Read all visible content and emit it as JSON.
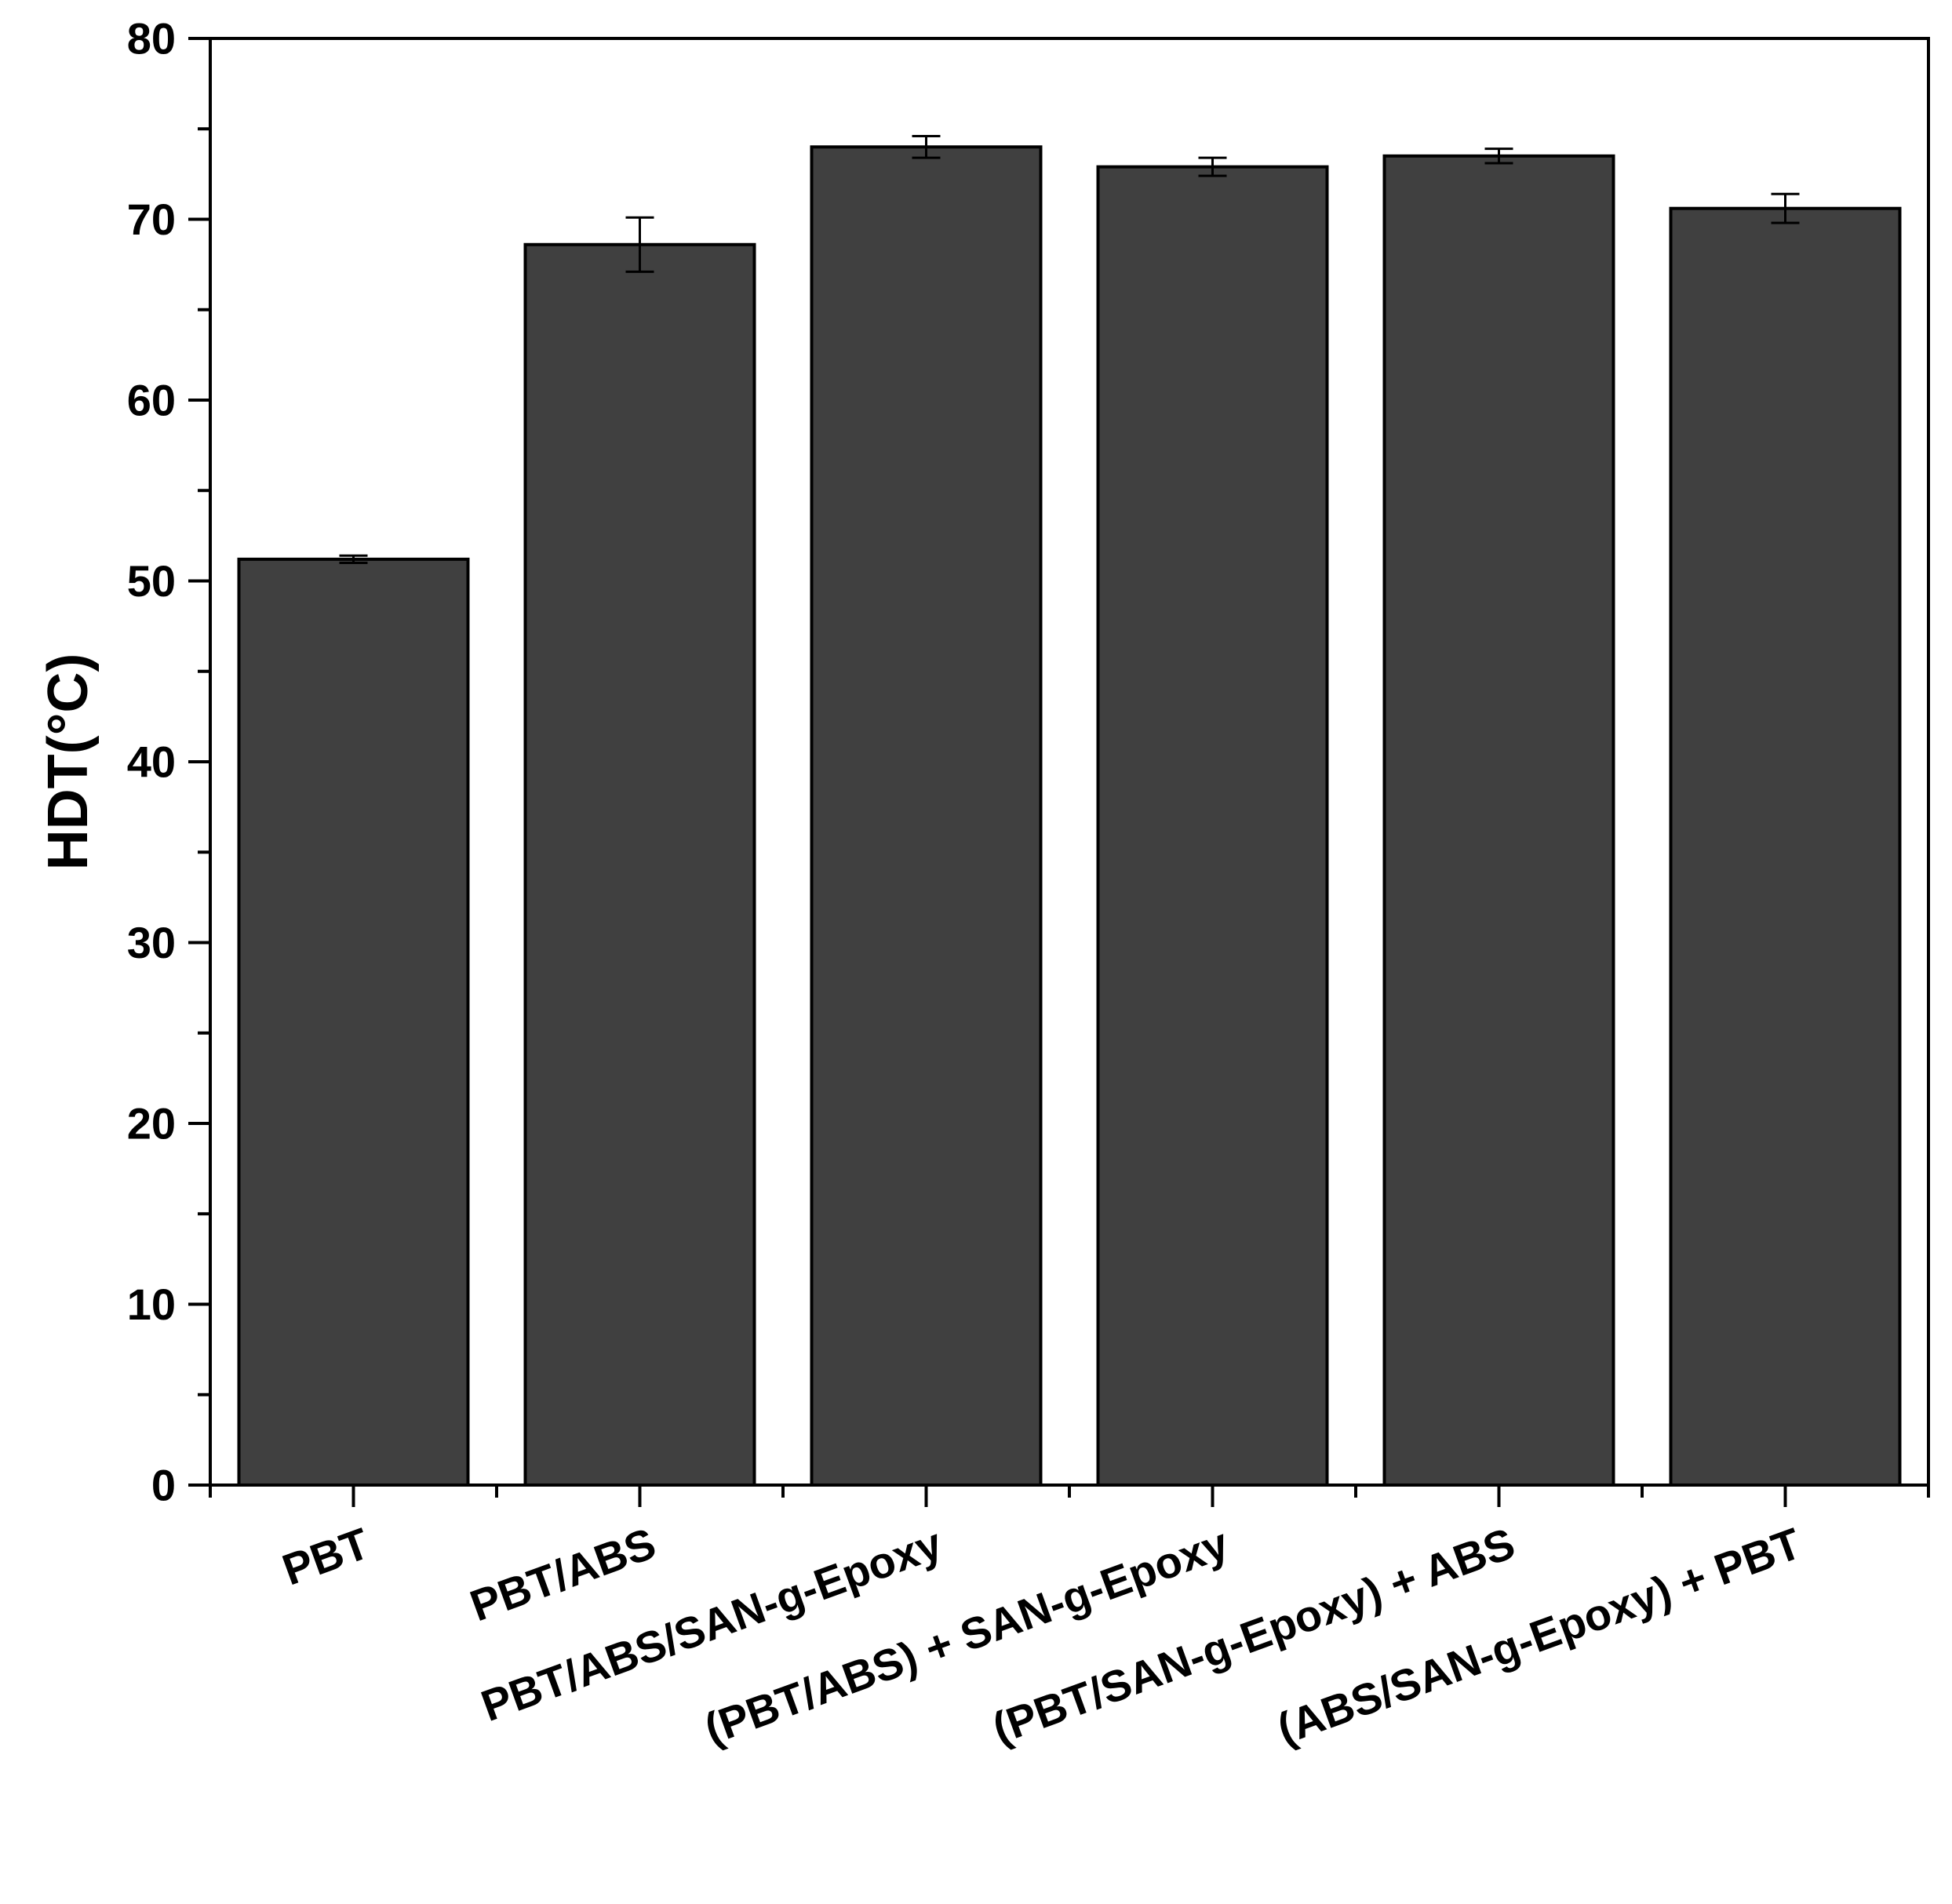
{
  "chart_data": {
    "type": "bar",
    "title": "",
    "xlabel": "",
    "ylabel": "HDT(°C)",
    "ylim": [
      0,
      80
    ],
    "yticks": [
      0,
      10,
      20,
      30,
      40,
      50,
      60,
      70,
      80
    ],
    "ytick_labels": [
      "0",
      "10",
      "20",
      "30",
      "40",
      "50",
      "60",
      "70",
      "80"
    ],
    "categories": [
      "PBT",
      "PBT/ABS",
      "PBT/ABS/SAN-g-Epoxy",
      "(PBT/ABS) + SAN-g-Epoxy",
      "(PBT/SAN-g-Epoxy) + ABS",
      "(ABS/SAN-g-Epoxy) + PBT"
    ],
    "values": [
      51.2,
      68.6,
      74.0,
      72.9,
      73.5,
      70.6
    ],
    "errors": [
      0.2,
      1.5,
      0.6,
      0.5,
      0.4,
      0.8
    ],
    "bar_color": "#404040",
    "edge_color": "#000000",
    "grid": false,
    "legend": "none"
  }
}
